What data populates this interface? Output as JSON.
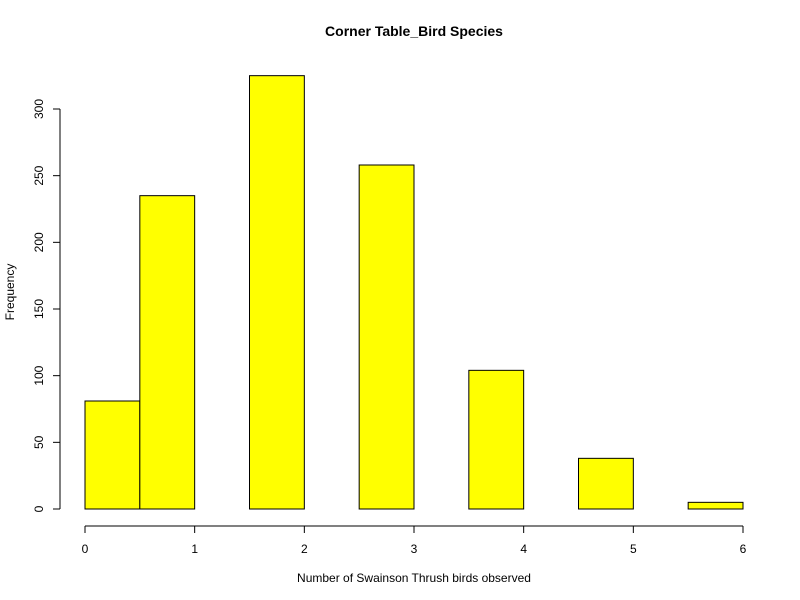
{
  "chart_data": {
    "type": "bar",
    "subtype": "histogram",
    "title": "Corner Table_Bird Species",
    "xlabel": "Number of Swainson Thrush birds observed",
    "ylabel": "Frequency",
    "bin_edges": [
      0,
      0.5,
      1,
      1.5,
      2,
      2.5,
      3,
      3.5,
      4,
      4.5,
      5,
      5.5,
      6
    ],
    "values": [
      81,
      235,
      0,
      325,
      0,
      258,
      0,
      104,
      0,
      38,
      0,
      5
    ],
    "xlim": [
      0,
      6
    ],
    "ylim": [
      0,
      325
    ],
    "x_ticks": [
      0,
      1,
      2,
      3,
      4,
      5,
      6
    ],
    "y_ticks": [
      0,
      50,
      100,
      150,
      200,
      250,
      300
    ],
    "bar_color": "#ffff00",
    "bar_border_color": "#000000",
    "grid": false,
    "legend": "none"
  }
}
